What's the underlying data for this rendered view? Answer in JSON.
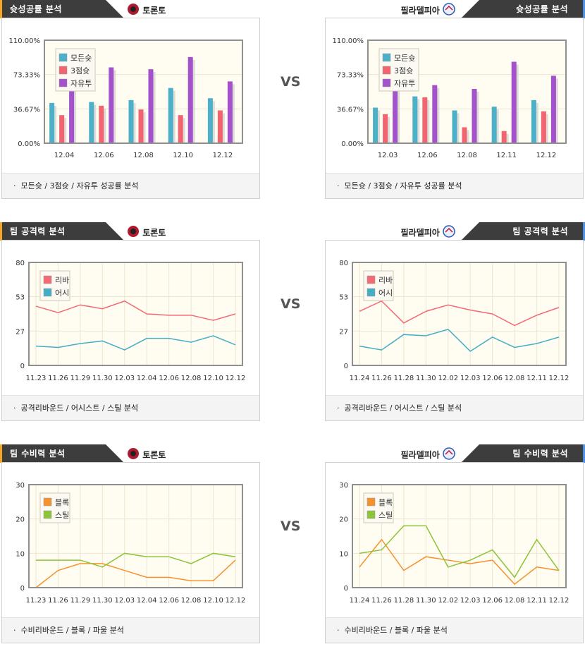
{
  "colors": {
    "header_dark": "#3d3d3d",
    "header_accent_left": "#f5a623",
    "header_accent_right": "#4a90e2",
    "plot_bg": "#fffcf1",
    "grid": "#ede6cf",
    "frame": "#8f8f8f"
  },
  "teams": {
    "left": "토론토",
    "right": "필라델피아"
  },
  "vs_label": "VS",
  "sections": [
    {
      "title": "슛성공률 분석",
      "footer": "모든슛 / 3점슛 / 자유투 성공률 분석",
      "charts": [
        {
          "type": "bar",
          "categories": [
            "12.04",
            "12.06",
            "12.08",
            "12.10",
            "12.12"
          ],
          "y_tick_labels": [
            "0.00%",
            "36.67%",
            "73.33%",
            "110.00%"
          ],
          "ylim": [
            0,
            110
          ],
          "series": [
            {
              "name": "모든슛",
              "color": "#4bb0c8",
              "values": [
                43,
                44,
                46,
                59,
                48
              ]
            },
            {
              "name": "3점슛",
              "color": "#f2646f",
              "values": [
                30,
                40,
                36,
                30,
                35
              ]
            },
            {
              "name": "자유투",
              "color": "#a451cc",
              "values": [
                71,
                81,
                79,
                92,
                66
              ]
            }
          ]
        },
        {
          "type": "bar",
          "categories": [
            "12.03",
            "12.06",
            "12.08",
            "12.11",
            "12.12"
          ],
          "y_tick_labels": [
            "0.00%",
            "36.67%",
            "73.33%",
            "110.00%"
          ],
          "ylim": [
            0,
            110
          ],
          "series": [
            {
              "name": "모든슛",
              "color": "#4bb0c8",
              "values": [
                38,
                50,
                35,
                39,
                46
              ]
            },
            {
              "name": "3점슛",
              "color": "#f2646f",
              "values": [
                31,
                49,
                17,
                13,
                34
              ]
            },
            {
              "name": "자유투",
              "color": "#a451cc",
              "values": [
                71,
                62,
                58,
                87,
                72
              ]
            }
          ]
        }
      ]
    },
    {
      "title": "팀 공격력 분석",
      "footer": "공격리바운드 / 어시스트 / 스틸 분석",
      "charts": [
        {
          "type": "line",
          "categories": [
            "11.23",
            "11.26",
            "11.29",
            "11.30",
            "12.03",
            "12.04",
            "12.06",
            "12.08",
            "12.10",
            "12.12"
          ],
          "y_tick_labels": [
            "0",
            "27",
            "53",
            "80"
          ],
          "ylim": [
            0,
            80
          ],
          "series": [
            {
              "name": "리바",
              "color": "#f26a73",
              "values": [
                46,
                41,
                47,
                44,
                50,
                40,
                39,
                39,
                35,
                40
              ]
            },
            {
              "name": "어시",
              "color": "#45aec6",
              "values": [
                15,
                14,
                17,
                19,
                12,
                21,
                21,
                18,
                23,
                16
              ]
            }
          ]
        },
        {
          "type": "line",
          "categories": [
            "11.24",
            "11.26",
            "11.28",
            "11.30",
            "12.02",
            "12.03",
            "12.06",
            "12.08",
            "12.11",
            "12.12"
          ],
          "y_tick_labels": [
            "0",
            "27",
            "53",
            "80"
          ],
          "ylim": [
            0,
            80
          ],
          "series": [
            {
              "name": "리바",
              "color": "#f26a73",
              "values": [
                42,
                50,
                33,
                42,
                47,
                43,
                40,
                31,
                39,
                45
              ]
            },
            {
              "name": "어시",
              "color": "#45aec6",
              "values": [
                15,
                12,
                24,
                23,
                28,
                11,
                22,
                14,
                17,
                22
              ]
            }
          ]
        }
      ]
    },
    {
      "title": "팀 수비력 분석",
      "footer": "수비리바운드 / 블록 / 파울 분석",
      "charts": [
        {
          "type": "line",
          "categories": [
            "11.23",
            "11.26",
            "11.29",
            "11.30",
            "12.03",
            "12.04",
            "12.06",
            "12.08",
            "12.10",
            "12.12"
          ],
          "y_tick_labels": [
            "0",
            "10",
            "20",
            "30"
          ],
          "ylim": [
            0,
            30
          ],
          "series": [
            {
              "name": "블록",
              "color": "#f5922e",
              "values": [
                0,
                5,
                7,
                7,
                5,
                3,
                3,
                2,
                2,
                8
              ]
            },
            {
              "name": "스틸",
              "color": "#8cc43a",
              "values": [
                8,
                8,
                8,
                6,
                10,
                9,
                9,
                7,
                10,
                9
              ]
            }
          ]
        },
        {
          "type": "line",
          "categories": [
            "11.24",
            "11.26",
            "11.28",
            "11.30",
            "12.02",
            "12.03",
            "12.06",
            "12.08",
            "12.11",
            "12.12"
          ],
          "y_tick_labels": [
            "0",
            "10",
            "20",
            "30"
          ],
          "ylim": [
            0,
            30
          ],
          "series": [
            {
              "name": "블록",
              "color": "#f5922e",
              "values": [
                6,
                14,
                5,
                9,
                8,
                7,
                8,
                1,
                6,
                5
              ]
            },
            {
              "name": "스틸",
              "color": "#8cc43a",
              "values": [
                10,
                11,
                18,
                18,
                6,
                8,
                11,
                3,
                14,
                5
              ]
            }
          ]
        }
      ]
    }
  ]
}
